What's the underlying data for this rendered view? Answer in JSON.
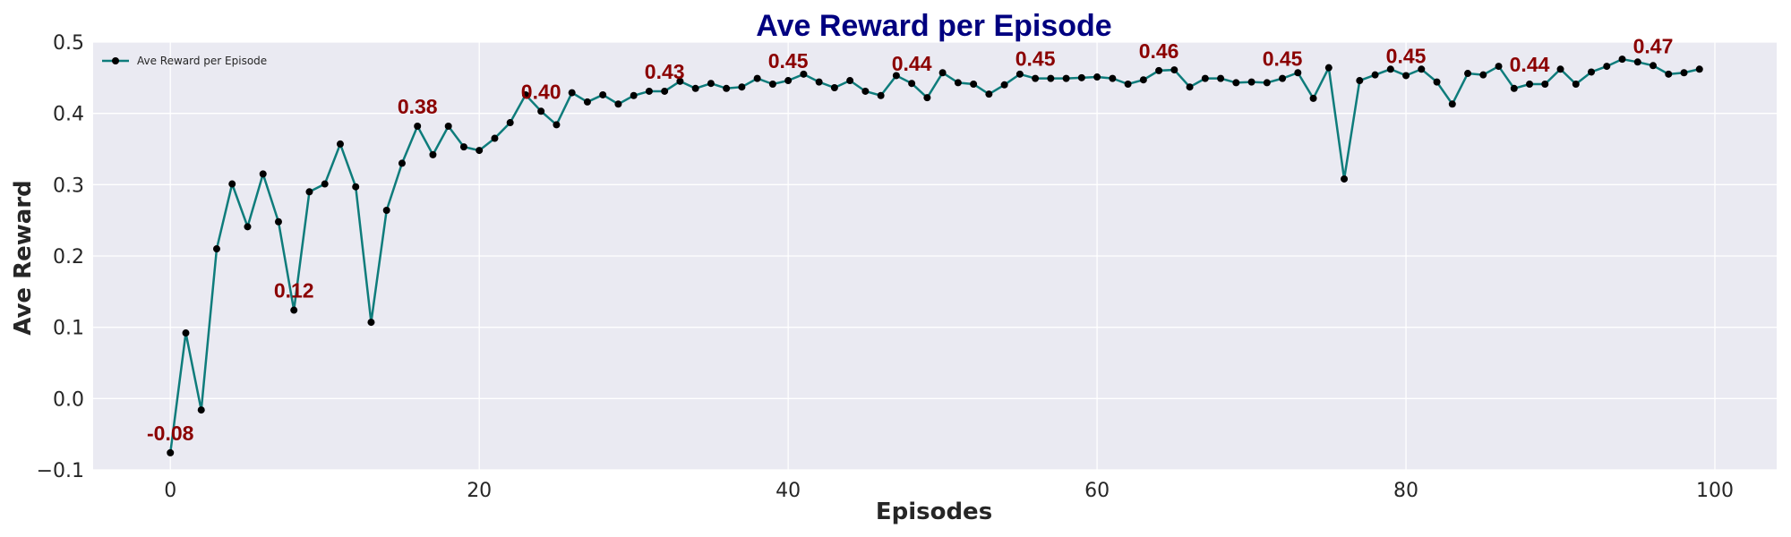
{
  "chart_data": {
    "type": "line",
    "title": "Ave Reward per Episode",
    "xlabel": "Episodes",
    "ylabel": "Ave Reward",
    "xlim": [
      -5,
      104
    ],
    "ylim": [
      -0.1,
      0.5
    ],
    "xticks": [
      "0",
      "20",
      "40",
      "60",
      "80",
      "100"
    ],
    "xtick_values": [
      0,
      20,
      40,
      60,
      80,
      100
    ],
    "yticks": [
      "−0.1",
      "0.0",
      "0.1",
      "0.2",
      "0.3",
      "0.4",
      "0.5"
    ],
    "ytick_values": [
      -0.1,
      0.0,
      0.1,
      0.2,
      0.3,
      0.4,
      0.5
    ],
    "grid": true,
    "legend_position": "top-left",
    "colors": {
      "background": "#eaeaf2",
      "grid": "#ffffff",
      "line": "#0e7c7b",
      "marker": "#000000",
      "annotation": "#8b0000",
      "title": "#000080"
    },
    "series": [
      {
        "name": "Ave Reward per Episode",
        "x": [
          0,
          1,
          2,
          3,
          4,
          5,
          6,
          7,
          8,
          9,
          10,
          11,
          12,
          13,
          14,
          15,
          16,
          17,
          18,
          19,
          20,
          21,
          22,
          23,
          24,
          25,
          26,
          27,
          28,
          29,
          30,
          31,
          32,
          33,
          34,
          35,
          36,
          37,
          38,
          39,
          40,
          41,
          42,
          43,
          44,
          45,
          46,
          47,
          48,
          49,
          50,
          51,
          52,
          53,
          54,
          55,
          56,
          57,
          58,
          59,
          60,
          61,
          62,
          63,
          64,
          65,
          66,
          67,
          68,
          69,
          70,
          71,
          72,
          73,
          74,
          75,
          76,
          77,
          78,
          79,
          80,
          81,
          82,
          83,
          84,
          85,
          86,
          87,
          88,
          89,
          90,
          91,
          92,
          93,
          94,
          95,
          96,
          97,
          98,
          99
        ],
        "values": [
          -0.076,
          0.092,
          -0.016,
          0.21,
          0.301,
          0.241,
          0.315,
          0.248,
          0.124,
          0.29,
          0.301,
          0.357,
          0.297,
          0.107,
          0.264,
          0.33,
          0.382,
          0.342,
          0.382,
          0.353,
          0.348,
          0.365,
          0.387,
          0.426,
          0.403,
          0.384,
          0.429,
          0.416,
          0.426,
          0.413,
          0.425,
          0.431,
          0.431,
          0.445,
          0.435,
          0.442,
          0.435,
          0.437,
          0.449,
          0.441,
          0.446,
          0.455,
          0.444,
          0.436,
          0.446,
          0.431,
          0.425,
          0.453,
          0.442,
          0.422,
          0.457,
          0.443,
          0.441,
          0.427,
          0.44,
          0.455,
          0.449,
          0.449,
          0.449,
          0.45,
          0.451,
          0.449,
          0.441,
          0.447,
          0.46,
          0.461,
          0.437,
          0.449,
          0.449,
          0.443,
          0.444,
          0.443,
          0.449,
          0.457,
          0.421,
          0.464,
          0.308,
          0.446,
          0.454,
          0.462,
          0.453,
          0.462,
          0.444,
          0.413,
          0.456,
          0.454,
          0.466,
          0.435,
          0.441,
          0.441,
          0.462,
          0.441,
          0.458,
          0.466,
          0.476,
          0.472,
          0.467,
          0.455,
          0.457,
          0.462
        ]
      }
    ],
    "annotations": [
      {
        "x": 0,
        "y": -0.076,
        "label": "-0.08"
      },
      {
        "x": 8,
        "y": 0.124,
        "label": "0.12"
      },
      {
        "x": 16,
        "y": 0.382,
        "label": "0.38"
      },
      {
        "x": 24,
        "y": 0.403,
        "label": "0.40"
      },
      {
        "x": 32,
        "y": 0.431,
        "label": "0.43"
      },
      {
        "x": 40,
        "y": 0.446,
        "label": "0.45"
      },
      {
        "x": 48,
        "y": 0.442,
        "label": "0.44"
      },
      {
        "x": 56,
        "y": 0.449,
        "label": "0.45"
      },
      {
        "x": 64,
        "y": 0.46,
        "label": "0.46"
      },
      {
        "x": 72,
        "y": 0.449,
        "label": "0.45"
      },
      {
        "x": 80,
        "y": 0.453,
        "label": "0.45"
      },
      {
        "x": 88,
        "y": 0.441,
        "label": "0.44"
      },
      {
        "x": 96,
        "y": 0.467,
        "label": "0.47"
      }
    ]
  }
}
